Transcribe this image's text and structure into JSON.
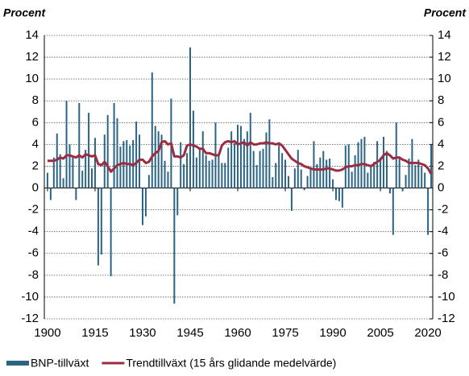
{
  "chart_data": {
    "type": "bar_line",
    "y_label": "Procent",
    "y2_label": "Procent",
    "x": [
      1900,
      1901,
      1902,
      1903,
      1904,
      1905,
      1906,
      1907,
      1908,
      1909,
      1910,
      1911,
      1912,
      1913,
      1914,
      1915,
      1916,
      1917,
      1918,
      1919,
      1920,
      1921,
      1922,
      1923,
      1924,
      1925,
      1926,
      1927,
      1928,
      1929,
      1930,
      1931,
      1932,
      1933,
      1934,
      1935,
      1936,
      1937,
      1938,
      1939,
      1940,
      1941,
      1942,
      1943,
      1944,
      1945,
      1946,
      1947,
      1948,
      1949,
      1950,
      1951,
      1952,
      1953,
      1954,
      1955,
      1956,
      1957,
      1958,
      1959,
      1960,
      1961,
      1962,
      1963,
      1964,
      1965,
      1966,
      1967,
      1968,
      1969,
      1970,
      1971,
      1972,
      1973,
      1974,
      1975,
      1976,
      1977,
      1978,
      1979,
      1980,
      1981,
      1982,
      1983,
      1984,
      1985,
      1986,
      1987,
      1988,
      1989,
      1990,
      1991,
      1992,
      1993,
      1994,
      1995,
      1996,
      1997,
      1998,
      1999,
      2000,
      2001,
      2002,
      2003,
      2004,
      2005,
      2006,
      2007,
      2008,
      2009,
      2010,
      2011,
      2012,
      2013,
      2014,
      2015,
      2016,
      2017,
      2018,
      2019,
      2020,
      2021
    ],
    "series": [
      {
        "name": "BNP-tillväxt",
        "color": "#2b6485",
        "kind": "bar",
        "values": [
          1.4,
          -1.1,
          2.8,
          5.0,
          3.1,
          0.9,
          8.0,
          4.0,
          2.8,
          -1.1,
          7.8,
          1.6,
          3.5,
          6.9,
          1.8,
          4.6,
          -7.1,
          -6.1,
          4.9,
          6.7,
          -8.1,
          7.8,
          6.4,
          3.8,
          4.3,
          4.4,
          3.9,
          4.4,
          6.1,
          4.9,
          -3.4,
          -2.6,
          1.2,
          10.6,
          5.7,
          5.2,
          4.9,
          2.5,
          1.5,
          8.2,
          -10.6,
          -2.5,
          4.2,
          2.2,
          3.2,
          12.9,
          7.1,
          2.8,
          3.6,
          5.2,
          3.0,
          2.5,
          2.6,
          6.0,
          3.0,
          2.3,
          2.3,
          3.7,
          5.2,
          4.1,
          5.8,
          5.7,
          4.5,
          5.2,
          6.9,
          3.4,
          2.1,
          3.4,
          3.6,
          5.1,
          6.3,
          1.0,
          2.3,
          4.0,
          3.2,
          2.6,
          1.1,
          -2.1,
          1.8,
          3.5,
          1.7,
          -0.2,
          1.1,
          1.9,
          4.3,
          2.2,
          2.8,
          3.4,
          2.6,
          2.7,
          0.8,
          -1.1,
          -1.2,
          -1.8,
          3.9,
          4.0,
          1.5,
          3.0,
          4.2,
          4.5,
          4.7,
          1.4,
          2.1,
          2.4,
          4.3,
          2.8,
          4.7,
          3.4,
          -0.5,
          -4.3,
          6.0,
          2.7,
          -0.3,
          1.2,
          2.7,
          4.5,
          2.1,
          2.6,
          2.0,
          1.4,
          -4.3,
          4.0
        ]
      },
      {
        "name": "Trendtillväxt (15 års glidande medelvärde)",
        "color": "#9b2d43",
        "kind": "line",
        "values": [
          2.5,
          2.5,
          2.5,
          2.6,
          2.8,
          2.7,
          3.0,
          3.0,
          2.9,
          2.8,
          3.0,
          2.8,
          3.1,
          3.0,
          2.9,
          3.0,
          2.2,
          2.1,
          2.4,
          2.0,
          1.5,
          1.8,
          2.1,
          2.2,
          2.3,
          2.2,
          2.2,
          2.1,
          2.3,
          2.6,
          2.6,
          2.3,
          2.4,
          2.9,
          3.2,
          3.4,
          4.2,
          4.3,
          4.0,
          4.1,
          2.9,
          2.9,
          2.8,
          3.0,
          3.9,
          4.0,
          3.9,
          3.8,
          3.6,
          3.6,
          3.2,
          3.2,
          3.1,
          3.0,
          3.0,
          3.9,
          4.2,
          4.3,
          4.2,
          4.3,
          4.0,
          4.1,
          4.2,
          3.9,
          4.2,
          4.0,
          4.0,
          4.1,
          4.1,
          4.2,
          4.1,
          4.1,
          4.0,
          4.1,
          3.9,
          3.5,
          3.1,
          2.7,
          2.5,
          2.3,
          2.2,
          2.0,
          1.9,
          1.8,
          1.7,
          1.7,
          1.7,
          1.7,
          1.8,
          1.8,
          1.7,
          1.6,
          1.6,
          1.7,
          1.9,
          2.0,
          2.0,
          2.1,
          2.1,
          2.2,
          2.2,
          2.1,
          2.0,
          2.2,
          2.4,
          2.6,
          3.0,
          3.2,
          3.0,
          2.7,
          2.8,
          2.8,
          2.6,
          2.5,
          2.3,
          2.3,
          2.3,
          2.3,
          2.2,
          2.1,
          1.8,
          1.3
        ]
      }
    ],
    "xlim": [
      1899,
      2021.5
    ],
    "xticks": [
      1900,
      1915,
      1930,
      1945,
      1960,
      1975,
      1990,
      2005,
      2020
    ],
    "ylim": [
      -12,
      14
    ],
    "yticks": [
      -12,
      -10,
      -8,
      -6,
      -4,
      -2,
      0,
      2,
      4,
      6,
      8,
      10,
      12,
      14
    ],
    "y2lim": [
      -12,
      14
    ],
    "y2ticks": [
      -12,
      -10,
      -8,
      -6,
      -4,
      -2,
      0,
      2,
      4,
      6,
      8,
      10,
      12,
      14
    ],
    "grid": true
  }
}
